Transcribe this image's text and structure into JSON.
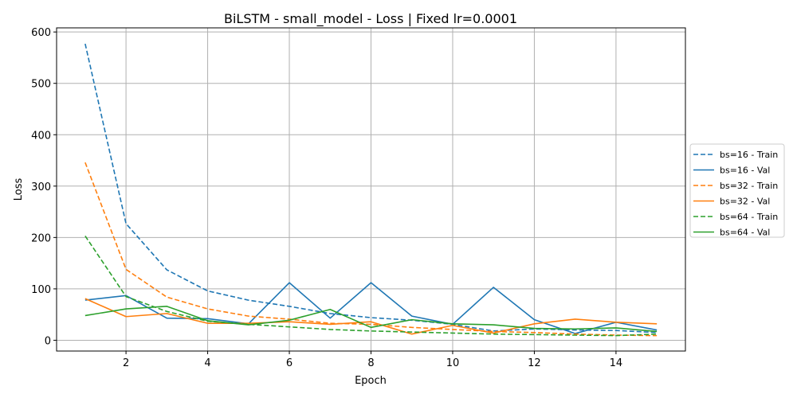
{
  "chart_data": {
    "type": "line",
    "title": "BiLSTM - small_model - Loss | Fixed lr=0.0001",
    "xlabel": "Epoch",
    "ylabel": "Loss",
    "xlim": [
      0.3,
      15.7
    ],
    "ylim": [
      -21,
      608
    ],
    "xticks": [
      2,
      4,
      6,
      8,
      10,
      12,
      14
    ],
    "yticks": [
      0,
      100,
      200,
      300,
      400,
      500,
      600
    ],
    "grid": true,
    "legend_position": "right",
    "x": [
      1,
      2,
      3,
      4,
      5,
      6,
      7,
      8,
      9,
      10,
      11,
      12,
      13,
      14,
      15
    ],
    "series": [
      {
        "name": "bs=16 - Train",
        "color": "#1f77b4",
        "dashed": true,
        "values": [
          577,
          227,
          137,
          96,
          78,
          66,
          52,
          44,
          39,
          31,
          18,
          22,
          20,
          19,
          15
        ]
      },
      {
        "name": "bs=16 - Val",
        "color": "#1f77b4",
        "dashed": false,
        "values": [
          78,
          87,
          43,
          42,
          32,
          112,
          43,
          112,
          47,
          31,
          103,
          40,
          13,
          35,
          20
        ]
      },
      {
        "name": "bs=32 - Train",
        "color": "#ff7f0e",
        "dashed": true,
        "values": [
          346,
          138,
          84,
          61,
          47,
          41,
          33,
          31,
          25,
          21,
          17,
          15,
          12,
          10,
          9
        ]
      },
      {
        "name": "bs=32 - Val",
        "color": "#ff7f0e",
        "dashed": false,
        "values": [
          81,
          46,
          52,
          33,
          33,
          36,
          31,
          36,
          12,
          29,
          14,
          32,
          41,
          35,
          32
        ]
      },
      {
        "name": "bs=64 - Train",
        "color": "#2ca02c",
        "dashed": true,
        "values": [
          203,
          85,
          56,
          37,
          31,
          26,
          21,
          18,
          16,
          14,
          12,
          11,
          10,
          9,
          12
        ]
      },
      {
        "name": "bs=64 - Val",
        "color": "#2ca02c",
        "dashed": false,
        "values": [
          48,
          61,
          66,
          38,
          30,
          39,
          60,
          25,
          40,
          32,
          30,
          23,
          22,
          24,
          17
        ]
      }
    ]
  }
}
